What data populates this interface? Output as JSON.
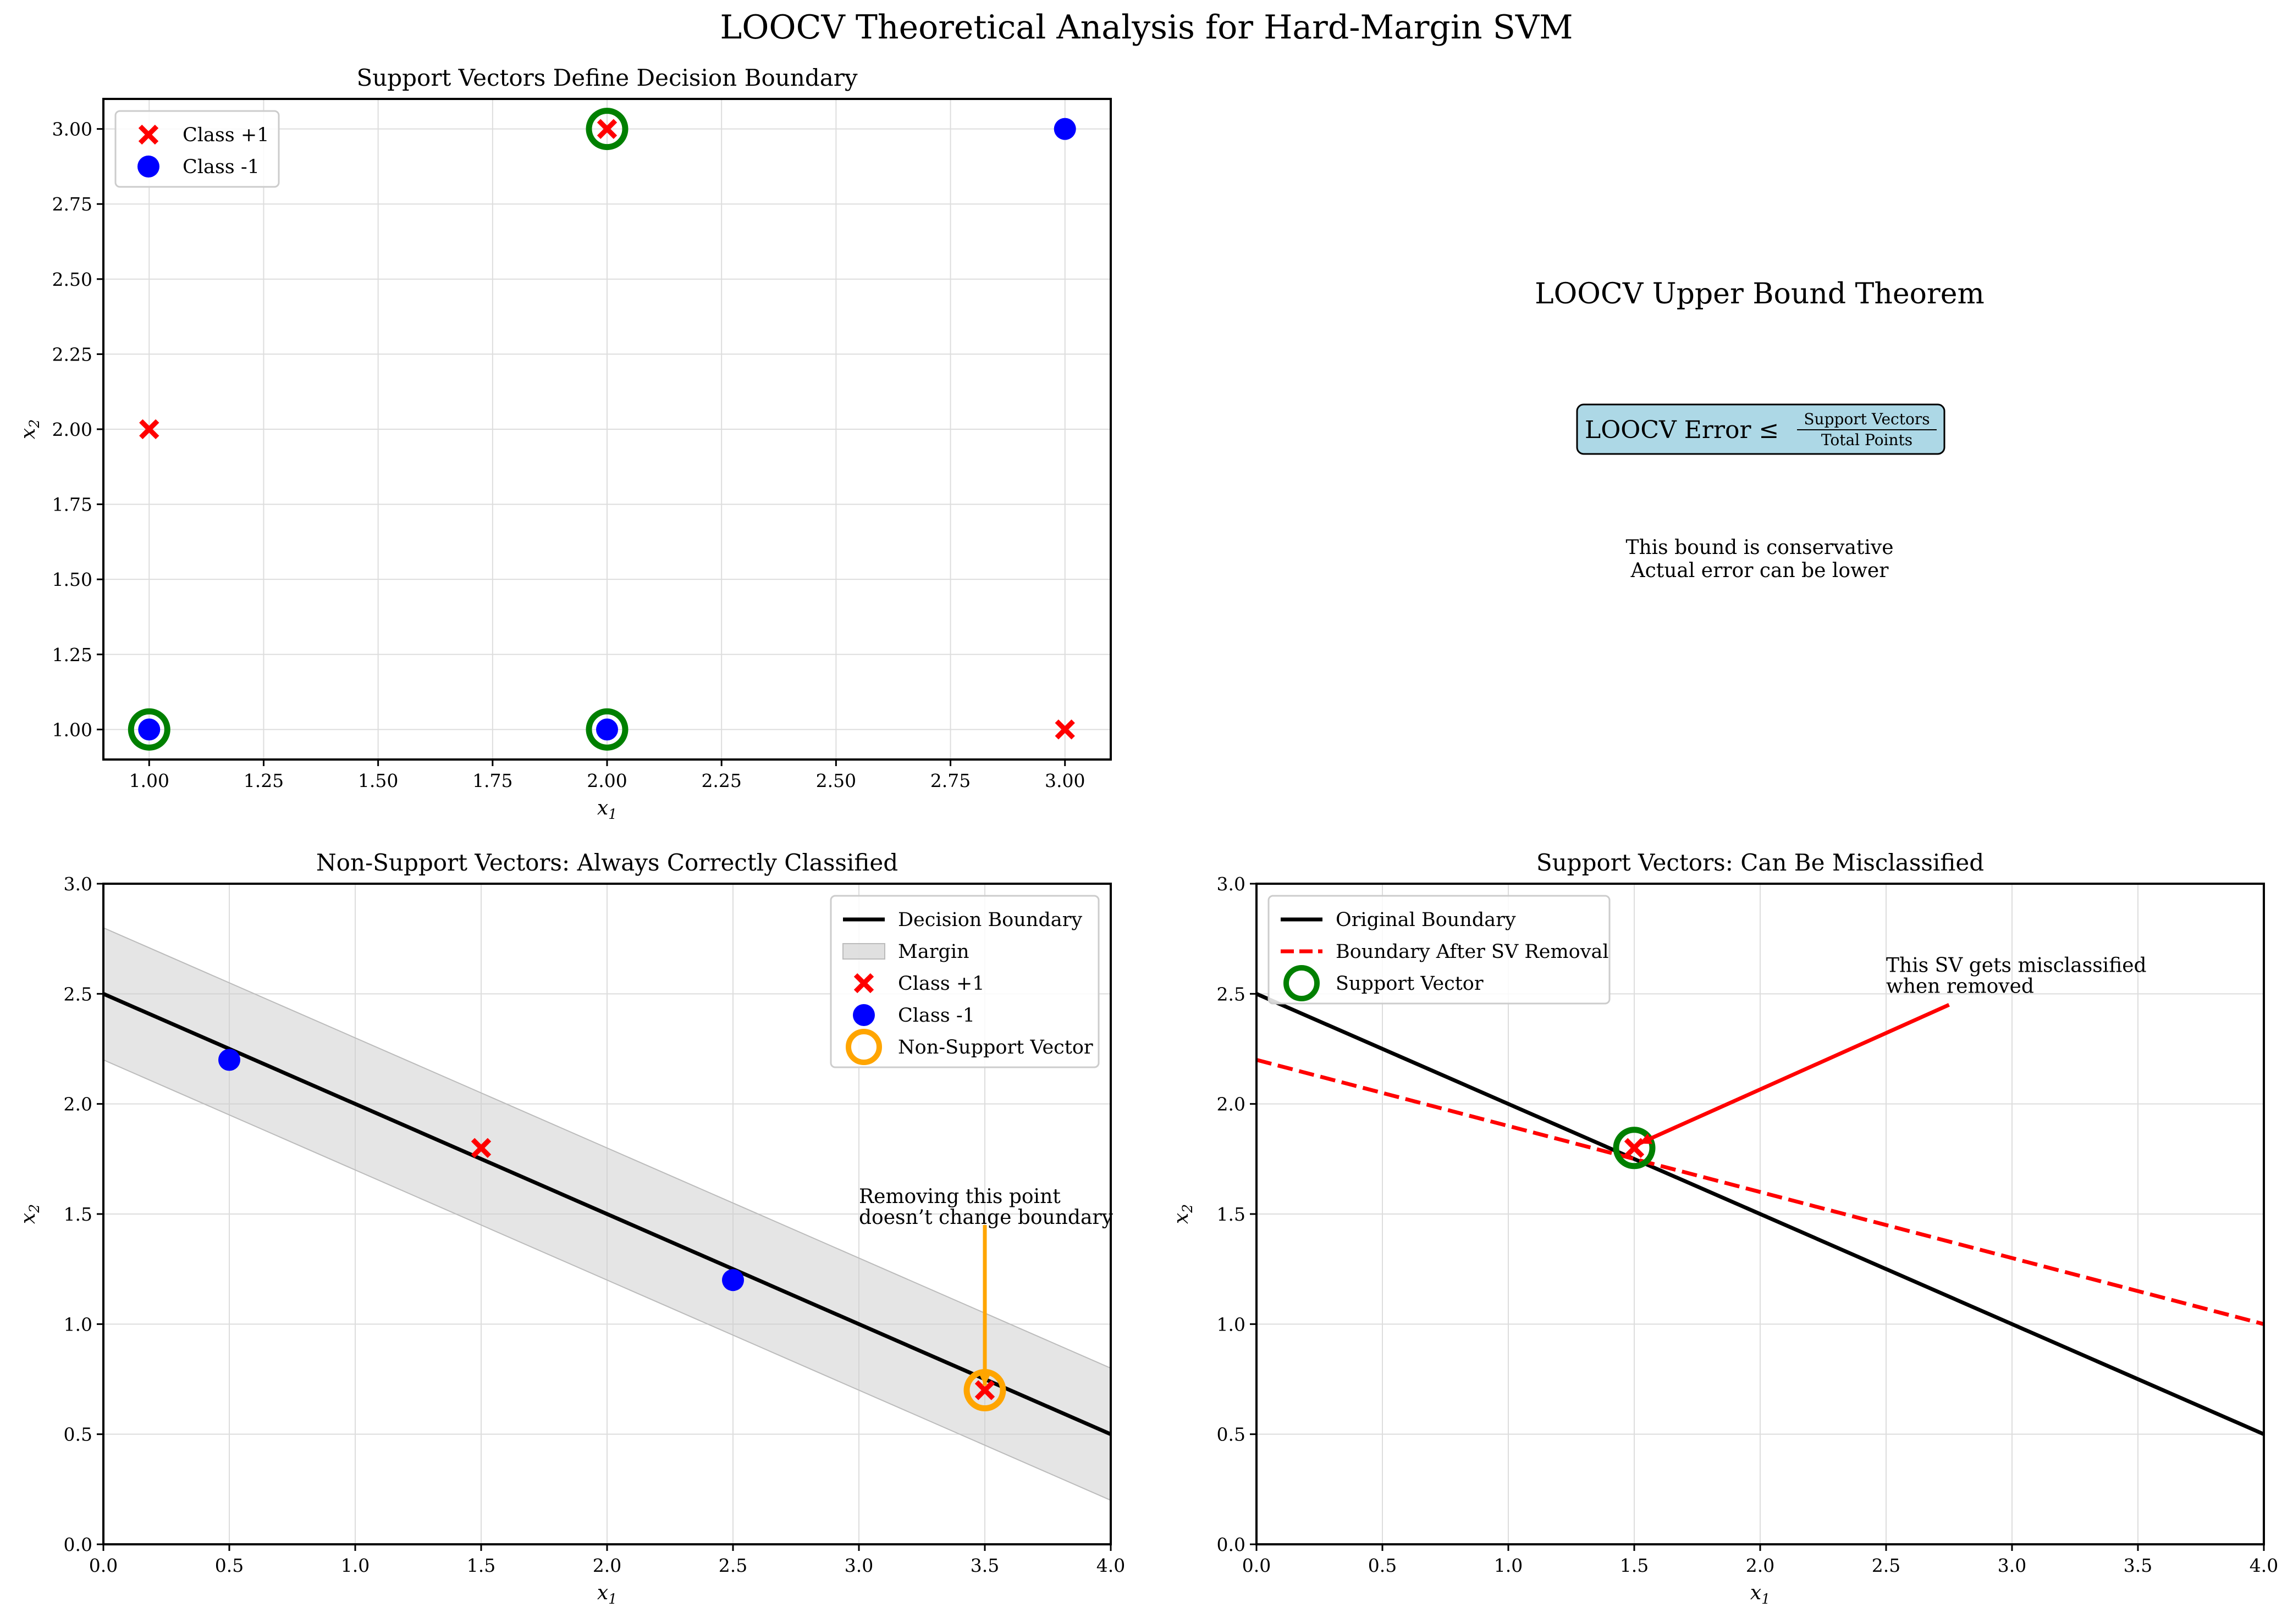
{
  "figure": {
    "title": "LOOCV Theoretical Analysis for Hard-Margin SVM"
  },
  "chart_data": [
    {
      "id": "sv",
      "type": "scatter",
      "title": "Support Vectors Define Decision Boundary",
      "xlabel": "x1",
      "ylabel": "x2",
      "xlim": [
        0.9,
        3.1
      ],
      "ylim": [
        0.9,
        3.1
      ],
      "xticks": [
        1.0,
        1.25,
        1.5,
        1.75,
        2.0,
        2.25,
        2.5,
        2.75,
        3.0
      ],
      "yticks": [
        1.0,
        1.25,
        1.5,
        1.75,
        2.0,
        2.25,
        2.5,
        2.75,
        3.0
      ],
      "grid": true,
      "legend": "upper-left",
      "series": [
        {
          "name": "Class +1",
          "marker": "x",
          "color": "#ff0000",
          "points": [
            [
              1,
              2
            ],
            [
              2,
              3
            ],
            [
              3,
              1
            ]
          ]
        },
        {
          "name": "Class -1",
          "marker": "o",
          "color": "#0000ff",
          "points": [
            [
              1,
              1
            ],
            [
              2,
              1
            ],
            [
              3,
              3
            ]
          ]
        }
      ],
      "highlight": {
        "marker": "ring",
        "color": "#008000",
        "points": [
          [
            1,
            1
          ],
          [
            2,
            1
          ],
          [
            2,
            3
          ]
        ]
      }
    },
    {
      "id": "nsv",
      "type": "scatter",
      "title": "Non-Support Vectors: Always Correctly Classified",
      "xlabel": "x1",
      "ylabel": "x2",
      "xlim": [
        0,
        4
      ],
      "ylim": [
        0,
        3
      ],
      "xticks": [
        0.0,
        0.5,
        1.0,
        1.5,
        2.0,
        2.5,
        3.0,
        3.5,
        4.0
      ],
      "yticks": [
        0.0,
        0.5,
        1.0,
        1.5,
        2.0,
        2.5,
        3.0
      ],
      "grid": true,
      "legend": "upper-right",
      "boundary": {
        "name": "Decision Boundary",
        "x": [
          0,
          4
        ],
        "y": [
          2.5,
          0.5
        ],
        "color": "#000000"
      },
      "margin": {
        "name": "Margin",
        "x": [
          0,
          4
        ],
        "upper": [
          2.8,
          0.8
        ],
        "lower": [
          2.2,
          0.2
        ],
        "color": "#cccccc"
      },
      "series": [
        {
          "name": "Class +1",
          "marker": "x",
          "color": "#ff0000",
          "points": [
            [
              1.5,
              1.8
            ],
            [
              3.5,
              0.7
            ]
          ]
        },
        {
          "name": "Class -1",
          "marker": "o",
          "color": "#0000ff",
          "points": [
            [
              0.5,
              2.2
            ],
            [
              2.5,
              1.2
            ]
          ]
        }
      ],
      "highlight": {
        "name": "Non-Support Vector",
        "marker": "ring",
        "color": "#ffa500",
        "points": [
          [
            3.5,
            0.7
          ]
        ]
      },
      "annotation": {
        "lines": [
          "Removing this point",
          "doesn’t change boundary"
        ],
        "text_xy": [
          3.0,
          1.55
        ],
        "arrow_from": [
          3.5,
          1.45
        ],
        "arrow_to": [
          3.5,
          0.72
        ],
        "color": "#ffa500"
      }
    },
    {
      "id": "msv",
      "type": "line",
      "title": "Support Vectors: Can Be Misclassified",
      "xlabel": "x1",
      "ylabel": "x2",
      "xlim": [
        0,
        4
      ],
      "ylim": [
        0,
        3
      ],
      "xticks": [
        0.0,
        0.5,
        1.0,
        1.5,
        2.0,
        2.5,
        3.0,
        3.5,
        4.0
      ],
      "yticks": [
        0.0,
        0.5,
        1.0,
        1.5,
        2.0,
        2.5,
        3.0
      ],
      "grid": true,
      "legend": "upper-left",
      "lines": [
        {
          "name": "Original Boundary",
          "x": [
            0,
            4
          ],
          "y": [
            2.5,
            0.5
          ],
          "color": "#000000",
          "style": "solid"
        },
        {
          "name": "Boundary After SV Removal",
          "x": [
            0,
            4
          ],
          "y": [
            2.2,
            1.0
          ],
          "color": "#ff0000",
          "style": "dashed"
        }
      ],
      "series": [
        {
          "name": "",
          "marker": "x",
          "color": "#ff0000",
          "points": [
            [
              1.5,
              1.8
            ]
          ]
        }
      ],
      "highlight": {
        "name": "Support Vector",
        "marker": "ring",
        "color": "#008000",
        "points": [
          [
            1.5,
            1.8
          ]
        ]
      },
      "annotation": {
        "lines": [
          "This SV gets misclassified",
          "when removed"
        ],
        "text_xy": [
          2.5,
          2.6
        ],
        "arrow_from": [
          2.75,
          2.45
        ],
        "arrow_to": [
          1.52,
          1.82
        ],
        "color": "#ff0000"
      }
    }
  ],
  "theorem": {
    "heading": "LOOCV Upper Bound Theorem",
    "formula_lhs": "LOOCV Error ≤",
    "formula_num": "Support Vectors",
    "formula_den": "Total Points",
    "box_color": "#add8e6",
    "note1": "This bound is conservative",
    "note2": "Actual error can be lower"
  }
}
